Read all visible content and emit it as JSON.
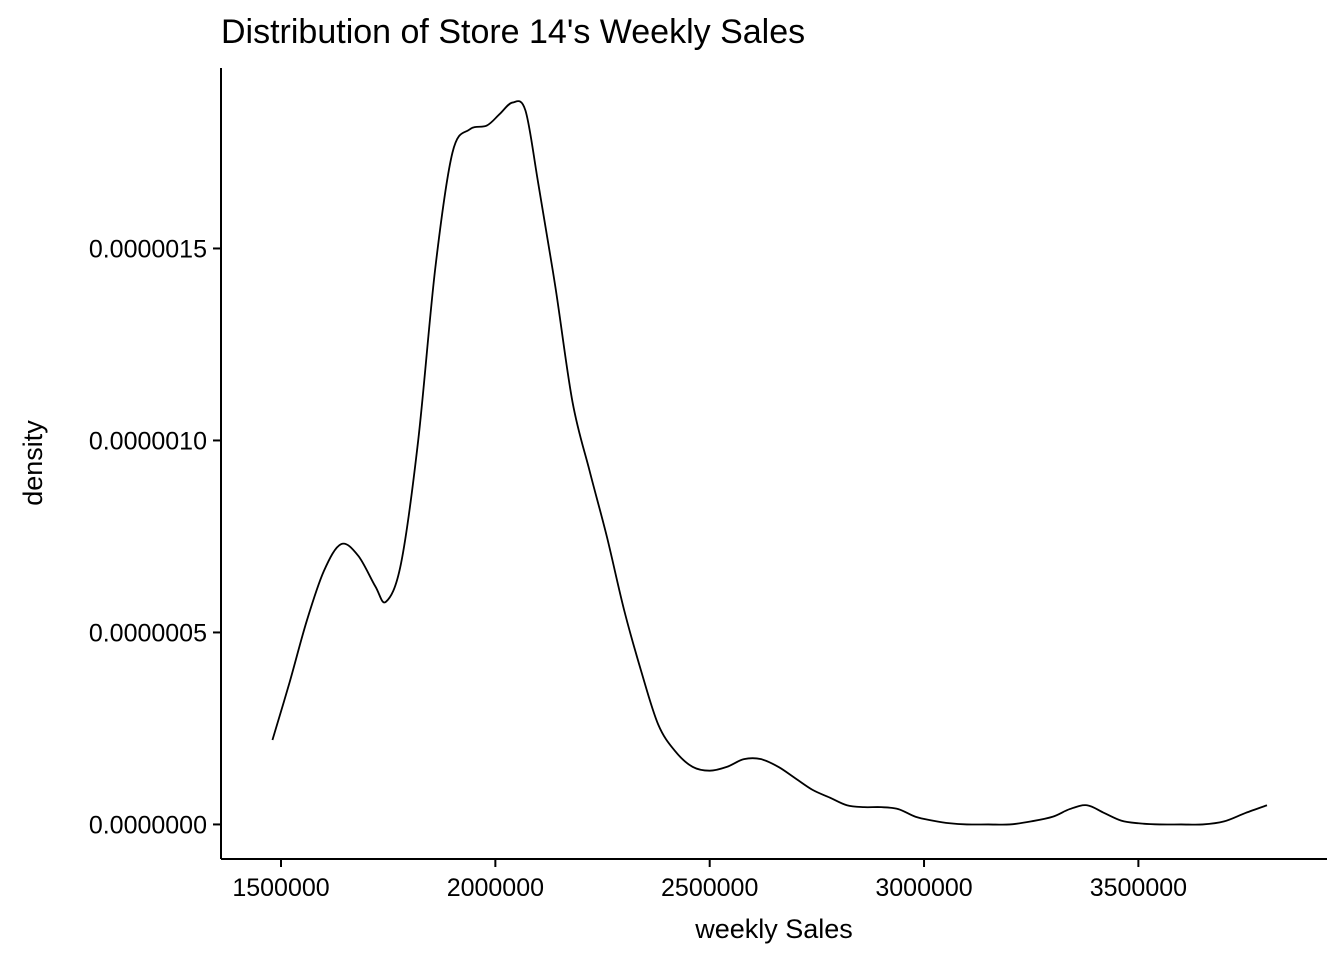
{
  "chart_data": {
    "type": "line",
    "title": "Distribution of Store 14's Weekly Sales",
    "xlabel": "weekly Sales",
    "ylabel": "density",
    "xlim": [
      1360000,
      3940000
    ],
    "ylim": [
      -9e-08,
      1.97e-06
    ],
    "x_ticks": [
      1500000,
      2000000,
      2500000,
      3000000,
      3500000
    ],
    "x_tick_labels": [
      "1500000",
      "2000000",
      "2500000",
      "3000000",
      "3500000"
    ],
    "y_ticks": [
      0.0,
      5e-07,
      1e-06,
      1.5e-06
    ],
    "y_tick_labels": [
      "0.0000000",
      "0.0000005",
      "0.0000010",
      "0.0000015"
    ],
    "grid": false,
    "legend": "none",
    "series": [
      {
        "color": "#000000",
        "x": [
          1480000,
          1520000,
          1560000,
          1600000,
          1640000,
          1680000,
          1720000,
          1745000,
          1780000,
          1820000,
          1860000,
          1900000,
          1940000,
          1980000,
          2010000,
          2040000,
          2070000,
          2100000,
          2140000,
          2180000,
          2220000,
          2260000,
          2300000,
          2340000,
          2380000,
          2420000,
          2460000,
          2500000,
          2540000,
          2580000,
          2620000,
          2660000,
          2700000,
          2740000,
          2780000,
          2820000,
          2860000,
          2900000,
          2940000,
          2980000,
          3020000,
          3060000,
          3100000,
          3150000,
          3200000,
          3250000,
          3300000,
          3340000,
          3380000,
          3420000,
          3460000,
          3500000,
          3550000,
          3600000,
          3650000,
          3700000,
          3750000,
          3800000
        ],
        "y": [
          2.2e-07,
          3.7e-07,
          5.3e-07,
          6.6e-07,
          7.3e-07,
          7e-07,
          6.2e-07,
          5.8e-07,
          6.8e-07,
          1e-06,
          1.45e-06,
          1.75e-06,
          1.81e-06,
          1.82e-06,
          1.85e-06,
          1.88e-06,
          1.86e-06,
          1.67e-06,
          1.4e-06,
          1.1e-06,
          9.2e-07,
          7.5e-07,
          5.6e-07,
          4e-07,
          2.6e-07,
          1.9e-07,
          1.5e-07,
          1.4e-07,
          1.5e-07,
          1.7e-07,
          1.7e-07,
          1.5e-07,
          1.2e-07,
          9e-08,
          7e-08,
          5e-08,
          4.5e-08,
          4.5e-08,
          4e-08,
          2e-08,
          1e-08,
          3e-09,
          0.0,
          0.0,
          0.0,
          8e-09,
          2e-08,
          4e-08,
          5e-08,
          3e-08,
          1e-08,
          3e-09,
          0.0,
          0.0,
          0.0,
          8e-09,
          3e-08,
          5e-08
        ]
      }
    ]
  }
}
